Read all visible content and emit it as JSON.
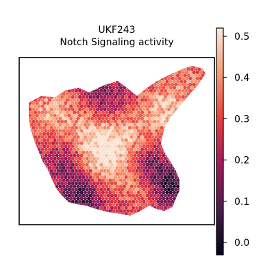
{
  "chart_data": {
    "type": "heatmap",
    "subtype": "spatial-hexbin",
    "title": "UKF243",
    "subtitle": "Notch Signaling activity",
    "xlabel": "",
    "ylabel": "",
    "frame": true,
    "grid": false,
    "colormap": "rocket",
    "colorbar": {
      "position": "right",
      "vmin": -0.03,
      "vmax": 0.52,
      "ticks": [
        0.0,
        0.1,
        0.2,
        0.3,
        0.4,
        0.5
      ],
      "tick_labels": [
        "0.0",
        "0.1",
        "0.2",
        "0.3",
        "0.4",
        "0.5"
      ],
      "colors": [
        "#03051a",
        "#4c1d4b",
        "#a11a5b",
        "#e83f3f",
        "#f69c73",
        "#faebdd"
      ]
    },
    "value_range_shown": [
      -0.02,
      0.51
    ],
    "summary": "Spots span the tissue section; highest Notch activity (~0.45-0.5) in center and upper-right lobes, lowest (~0-0.1) along lower-right and bottom edges."
  }
}
